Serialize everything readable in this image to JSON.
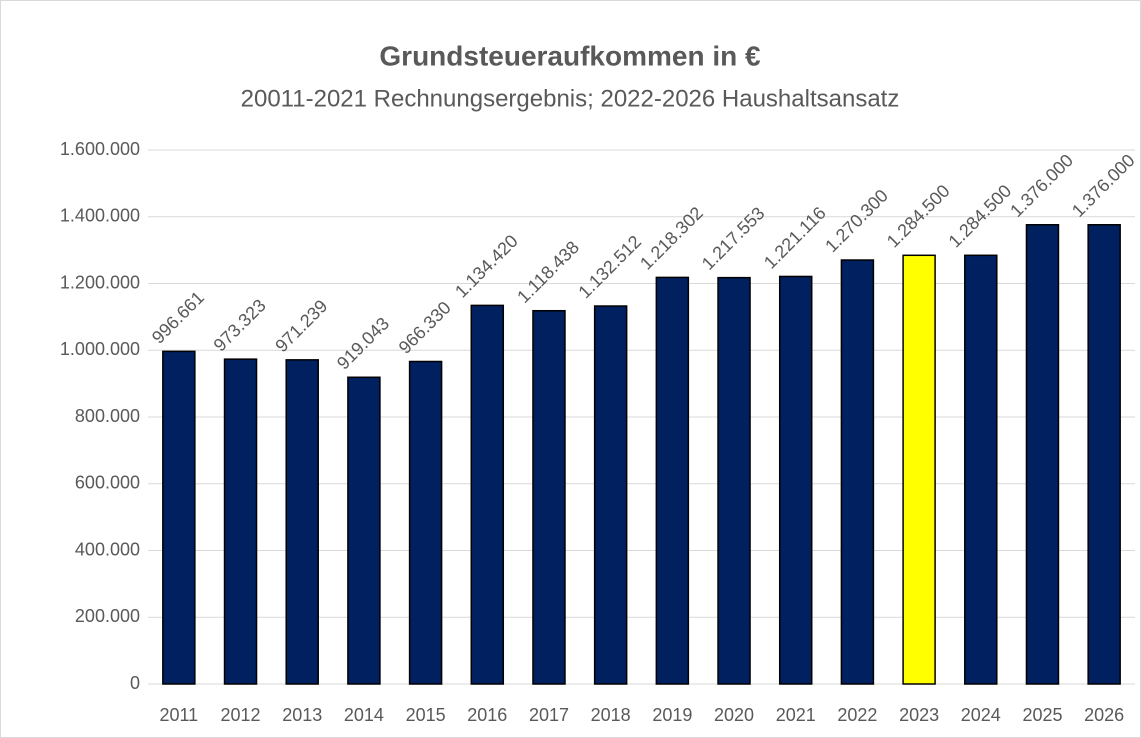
{
  "chart_data": {
    "type": "bar",
    "title": "Grundsteueraufkommen in €",
    "subtitle": "20011-2021 Rechnungsergebnis; 2022-2026 Haushaltsansatz",
    "categories": [
      "2011",
      "2012",
      "2013",
      "2014",
      "2015",
      "2016",
      "2017",
      "2018",
      "2019",
      "2020",
      "2021",
      "2022",
      "2023",
      "2024",
      "2025",
      "2026"
    ],
    "values": [
      996661,
      973323,
      971239,
      919043,
      966330,
      1134420,
      1118438,
      1132512,
      1218302,
      1217553,
      1221116,
      1270300,
      1284500,
      1284500,
      1376000,
      1376000
    ],
    "value_labels": [
      "996.661",
      "973.323",
      "971.239",
      "919.043",
      "966.330",
      "1.134.420",
      "1.118.438",
      "1.132.512",
      "1.218.302",
      "1.217.553",
      "1.221.116",
      "1.270.300",
      "1.284.500",
      "1.284.500",
      "1.376.000",
      "1.376.000"
    ],
    "colors": [
      "#002060",
      "#002060",
      "#002060",
      "#002060",
      "#002060",
      "#002060",
      "#002060",
      "#002060",
      "#002060",
      "#002060",
      "#002060",
      "#002060",
      "#ffff00",
      "#002060",
      "#002060",
      "#002060"
    ],
    "ylim": [
      0,
      1600000
    ],
    "yticks": [
      0,
      {
        "value": 200000,
        "label": "200.000"
      },
      {
        "value": 400000,
        "label": "400.000"
      },
      {
        "value": 600000,
        "label": "600.000"
      },
      {
        "value": 800000,
        "label": "800.000"
      },
      {
        "value": 1000000,
        "label": "1.000.000"
      },
      {
        "value": 1200000,
        "label": "1.200.000"
      },
      {
        "value": 1400000,
        "label": "1.400.000"
      },
      {
        "value": 1600000,
        "label": "1.600.000"
      }
    ],
    "grid": true
  }
}
